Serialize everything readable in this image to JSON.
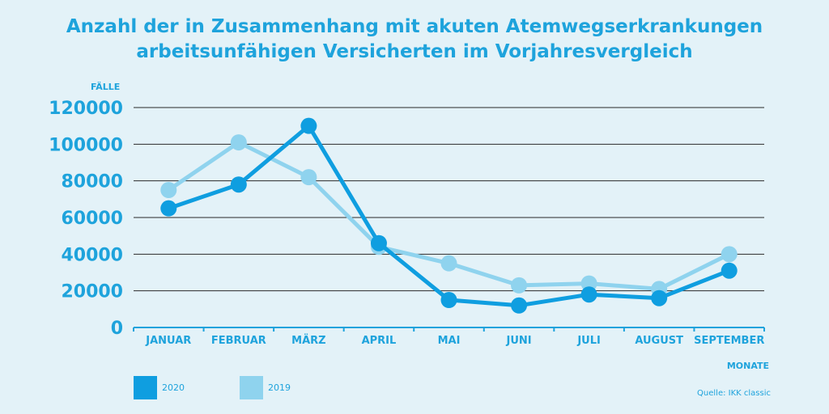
{
  "title_lines": [
    "Anzahl der in Zusammenhang mit akuten Atemwegserkrankungen",
    "arbeitsunfähigen Versicherten im Vorjahresvergleich"
  ],
  "chart_data": {
    "type": "line",
    "ylabel": "FÄLLE",
    "xlabel": "MONATE",
    "categories": [
      "JANUAR",
      "FEBRUAR",
      "MÄRZ",
      "APRIL",
      "MAI",
      "JUNI",
      "JULI",
      "AUGUST",
      "SEPTEMBER"
    ],
    "yticks": [
      "0",
      "20000",
      "40000",
      "60000",
      "80000",
      "100000",
      "120000"
    ],
    "ylim": [
      0,
      120000
    ],
    "grid": true,
    "legend_position": "bottom-left",
    "series": [
      {
        "name": "2019",
        "color": "#8fd3ee",
        "values": [
          75000,
          101000,
          82000,
          44000,
          35000,
          23000,
          24000,
          21000,
          40000
        ]
      },
      {
        "name": "2020",
        "color": "#0f9ee0",
        "values": [
          65000,
          78000,
          110000,
          46000,
          15000,
          12000,
          18000,
          16000,
          31000
        ]
      }
    ]
  },
  "legend": [
    {
      "label": "2020",
      "color": "#0f9ee0"
    },
    {
      "label": "2019",
      "color": "#8fd3ee"
    }
  ],
  "source": "Quelle: IKK classic"
}
